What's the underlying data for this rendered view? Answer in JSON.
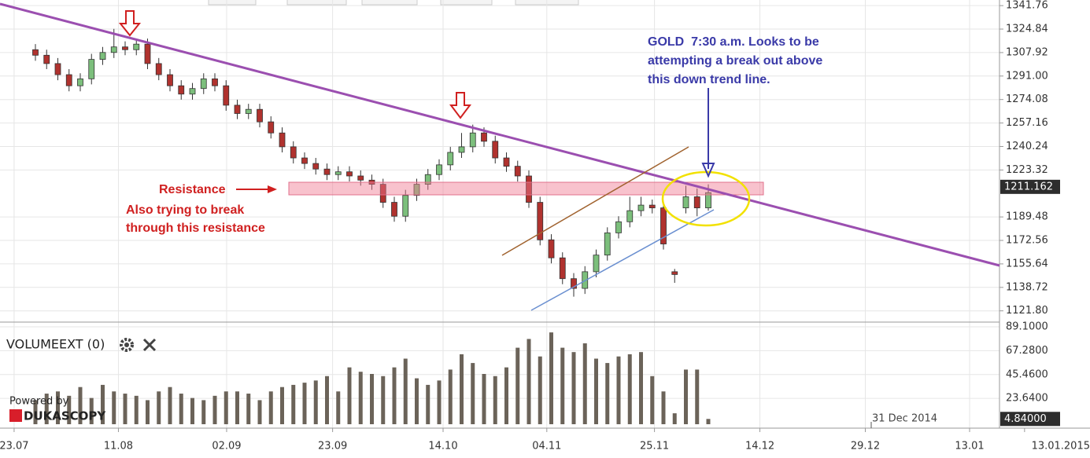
{
  "chart_data": {
    "type": "candlestick",
    "open": [
      1310,
      1306,
      1300,
      1292,
      1284,
      1289,
      1303,
      1308,
      1312,
      1310,
      1314,
      1300,
      1292,
      1284,
      1278,
      1282,
      1289,
      1284,
      1270,
      1264,
      1267,
      1258,
      1250,
      1240,
      1232,
      1228,
      1224,
      1220,
      1222,
      1219,
      1216,
      1213,
      1200,
      1190,
      1205,
      1213,
      1220,
      1227,
      1236,
      1240,
      1250,
      1244,
      1232,
      1226,
      1219,
      1200,
      1173,
      1160,
      1145,
      1138,
      1150,
      1162,
      1178,
      1186,
      1194,
      1198,
      1196,
      1150,
      1196,
      1204,
      1196
    ],
    "high": [
      1314,
      1310,
      1304,
      1296,
      1293,
      1307,
      1312,
      1325,
      1316,
      1318,
      1318,
      1304,
      1296,
      1288,
      1286,
      1293,
      1293,
      1288,
      1274,
      1271,
      1271,
      1262,
      1254,
      1244,
      1236,
      1232,
      1228,
      1226,
      1226,
      1223,
      1220,
      1217,
      1204,
      1209,
      1217,
      1224,
      1231,
      1240,
      1250,
      1256,
      1254,
      1248,
      1236,
      1230,
      1223,
      1204,
      1177,
      1164,
      1149,
      1154,
      1166,
      1182,
      1190,
      1204,
      1204,
      1202,
      1200,
      1152,
      1212,
      1210,
      1213
    ],
    "low": [
      1302,
      1296,
      1288,
      1280,
      1280,
      1285,
      1299,
      1304,
      1306,
      1306,
      1296,
      1288,
      1280,
      1274,
      1274,
      1278,
      1280,
      1266,
      1260,
      1260,
      1254,
      1246,
      1236,
      1228,
      1224,
      1220,
      1216,
      1216,
      1215,
      1212,
      1209,
      1196,
      1186,
      1186,
      1201,
      1209,
      1216,
      1223,
      1232,
      1236,
      1240,
      1228,
      1222,
      1215,
      1196,
      1169,
      1156,
      1141,
      1132,
      1134,
      1146,
      1158,
      1174,
      1182,
      1190,
      1192,
      1166,
      1142,
      1192,
      1190,
      1194
    ],
    "close": [
      1306,
      1300,
      1292,
      1284,
      1289,
      1303,
      1308,
      1312,
      1310,
      1314,
      1300,
      1292,
      1284,
      1278,
      1282,
      1289,
      1284,
      1270,
      1264,
      1267,
      1258,
      1250,
      1240,
      1232,
      1228,
      1224,
      1220,
      1222,
      1219,
      1216,
      1213,
      1200,
      1190,
      1205,
      1213,
      1220,
      1227,
      1236,
      1240,
      1250,
      1244,
      1232,
      1226,
      1219,
      1200,
      1173,
      1160,
      1145,
      1138,
      1150,
      1162,
      1178,
      1186,
      1194,
      1198,
      1196,
      1170,
      1148,
      1204,
      1196,
      1207
    ],
    "up_color": "#7cbf7c",
    "down_color": "#b0322e",
    "ylim": [
      1113.7,
      1345.8
    ],
    "yticks": [
      {
        "value": 1341.76,
        "label": "1341.76"
      },
      1324.84,
      1307.92,
      {
        "value": 1291.0,
        "label": "1291.00"
      },
      1274.08,
      1257.16,
      1240.24,
      1223.32,
      1189.48,
      1172.56,
      1155.64,
      1138.72,
      {
        "value": 1121.8,
        "label": "1121.80"
      }
    ],
    "last_price": 1211.162,
    "xticks": [
      {
        "value": -1.9,
        "label": "23.07"
      },
      {
        "value": 7.4,
        "label": "11.08"
      },
      {
        "value": 17.05,
        "label": "02.09"
      },
      {
        "value": 26.5,
        "label": "23.09"
      },
      {
        "value": 36.35,
        "label": "14.10"
      },
      {
        "value": 45.6,
        "label": "04.11"
      },
      {
        "value": 55.2,
        "label": "25.11"
      },
      {
        "value": 64.6,
        "label": "14.12"
      },
      {
        "value": 74.0,
        "label": "29.12"
      },
      {
        "value": 83.3,
        "label": "13.01"
      },
      {
        "value": 88.2,
        "label": "13.01.2015"
      }
    ],
    "grid": true,
    "volume": {
      "name": "VOLUMEEXT (0)",
      "color": "#6b6359",
      "values": [
        22,
        28,
        30,
        26,
        34,
        24,
        36,
        30,
        28,
        26,
        22,
        30,
        34,
        28,
        24,
        22,
        26,
        30,
        30,
        28,
        22,
        30,
        34,
        36,
        38,
        40,
        44,
        30,
        52,
        48,
        46,
        44,
        52,
        60,
        42,
        36,
        40,
        50,
        64,
        56,
        46,
        44,
        52,
        70,
        78,
        62,
        84,
        70,
        66,
        74,
        60,
        56,
        62,
        64,
        66,
        44,
        30,
        10,
        50,
        50,
        4.84
      ],
      "ylim": [
        0,
        92
      ],
      "yticks": [
        {
          "value": 23.64,
          "label": "23.6400"
        },
        {
          "value": 45.46,
          "label": "45.4600"
        },
        {
          "value": 67.28,
          "label": "67.2800"
        },
        {
          "value": 89.1,
          "label": "89.1000"
        }
      ],
      "last_label": "4.84000"
    },
    "annotations": {
      "gold_note": [
        "GOLD  7:30 a.m. Looks to be",
        "attempting a break out above",
        "this down trend line."
      ],
      "resistance": "Resistance",
      "resistance_note": [
        "Also trying to break",
        "through this resistance"
      ],
      "date_marker": "31 Dec 2014"
    },
    "branding": {
      "powered": "Powered by",
      "name": "DUKASCOPY"
    }
  }
}
